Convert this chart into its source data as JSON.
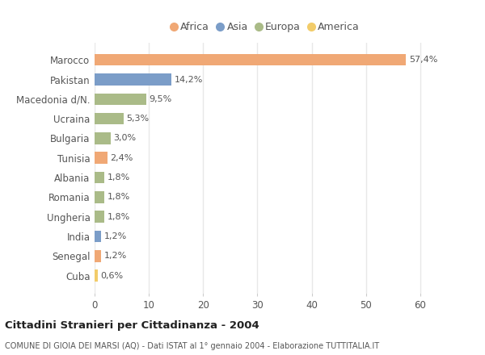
{
  "countries": [
    "Marocco",
    "Pakistan",
    "Macedonia d/N.",
    "Ucraina",
    "Bulgaria",
    "Tunisia",
    "Albania",
    "Romania",
    "Ungheria",
    "India",
    "Senegal",
    "Cuba"
  ],
  "values": [
    57.4,
    14.2,
    9.5,
    5.3,
    3.0,
    2.4,
    1.8,
    1.8,
    1.8,
    1.2,
    1.2,
    0.6
  ],
  "labels": [
    "57,4%",
    "14,2%",
    "9,5%",
    "5,3%",
    "3,0%",
    "2,4%",
    "1,8%",
    "1,8%",
    "1,8%",
    "1,2%",
    "1,2%",
    "0,6%"
  ],
  "continents": [
    "Africa",
    "Asia",
    "Europa",
    "Europa",
    "Europa",
    "Africa",
    "Europa",
    "Europa",
    "Europa",
    "Asia",
    "Africa",
    "America"
  ],
  "colors": {
    "Africa": "#F0A875",
    "Asia": "#7B9DC8",
    "Europa": "#AABB88",
    "America": "#F2CC6A"
  },
  "legend_order": [
    "Africa",
    "Asia",
    "Europa",
    "America"
  ],
  "title": "Cittadini Stranieri per Cittadinanza - 2004",
  "subtitle": "COMUNE DI GIOIA DEI MARSI (AQ) - Dati ISTAT al 1° gennaio 2004 - Elaborazione TUTTITALIA.IT",
  "xlim": [
    0,
    63
  ],
  "xticks": [
    0,
    10,
    20,
    30,
    40,
    50,
    60
  ],
  "background_color": "#ffffff",
  "grid_color": "#e8e8e8",
  "bar_height": 0.6
}
